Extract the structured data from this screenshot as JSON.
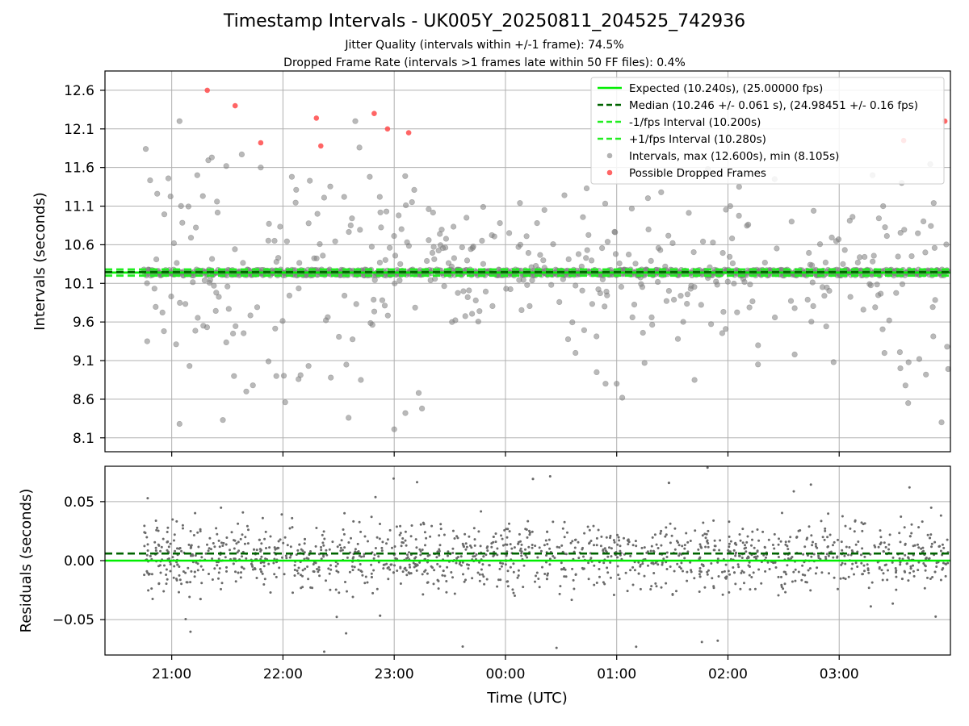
{
  "figure": {
    "title": "Timestamp Intervals - UK005Y_20250811_204525_742936",
    "subtitle_jitter": "Jitter Quality (intervals within +/-1 frame): 74.5%",
    "subtitle_dropped": "Dropped Frame Rate (intervals >1 frames late within 50 FF files): 0.4%"
  },
  "colors": {
    "expected": "#00ee00",
    "median": "#006400",
    "interval_band": "#22ee22",
    "intervals": "#808080",
    "dropped": "#ff4a4a",
    "grid": "#b0b0b0",
    "residuals": "#6a6a6a"
  },
  "chart_data": [
    {
      "type": "scatter",
      "ylabel": "Intervals (seconds)",
      "xlabel": "",
      "x_unit": "hours since 00:00 UTC",
      "xlim": [
        -3.6,
        4.0
      ],
      "ylim": [
        7.92,
        12.85
      ],
      "x_ticks": [
        -3,
        -2,
        -1,
        0,
        1,
        2,
        3
      ],
      "x_tick_labels": [
        "21:00",
        "22:00",
        "23:00",
        "00:00",
        "01:00",
        "02:00",
        "03:00"
      ],
      "y_ticks": [
        8.1,
        8.6,
        9.1,
        9.6,
        10.1,
        10.6,
        11.1,
        11.6,
        12.1,
        12.6
      ],
      "y_tick_labels": [
        "8.1",
        "8.6",
        "9.1",
        "9.6",
        "10.1",
        "10.6",
        "11.1",
        "11.6",
        "12.1",
        "12.6"
      ],
      "grid": true,
      "legend_position": "top-right",
      "lines": [
        {
          "name": "Expected (10.240s), (25.00000 fps)",
          "y": 10.24,
          "style": "solid",
          "color_key": "expected"
        },
        {
          "name": "Median (10.246 +/- 0.061 s), (24.98451 +/- 0.16 fps)",
          "y": 10.246,
          "style": "dashed",
          "color_key": "median"
        },
        {
          "name": "-1/fps Interval (10.200s)",
          "y": 10.2,
          "style": "dashed",
          "color_key": "interval_band"
        },
        {
          "name": "+1/fps Interval (10.280s)",
          "y": 10.28,
          "style": "dashed",
          "color_key": "interval_band"
        }
      ],
      "series": [
        {
          "name": "Intervals, max (12.600s), min (8.105s)",
          "kind": "scatter",
          "color_key": "intervals",
          "stats": {
            "max": 12.6,
            "min": 8.105,
            "count": 1300,
            "core_fraction": 0.745,
            "x_start": -3.25,
            "x_end": 3.98
          },
          "points": [
            [
              -3.22,
              9.35
            ],
            [
              -3.13,
              11.26
            ],
            [
              -3.07,
              9.48
            ],
            [
              -3.03,
              11.46
            ],
            [
              -2.98,
              10.62
            ],
            [
              -2.93,
              12.2
            ],
            [
              -2.93,
              8.28
            ],
            [
              -2.84,
              9.03
            ],
            [
              -2.77,
              11.5
            ],
            [
              -2.72,
              11.23
            ],
            [
              -2.64,
              11.73
            ],
            [
              -2.6,
              9.98
            ],
            [
              -2.54,
              8.33
            ],
            [
              -2.51,
              11.62
            ],
            [
              -2.44,
              8.9
            ],
            [
              -2.37,
              11.77
            ],
            [
              -2.33,
              8.7
            ],
            [
              -2.27,
              8.78
            ],
            [
              -2.2,
              11.6
            ],
            [
              -2.13,
              9.09
            ],
            [
              -2.06,
              8.9
            ],
            [
              -1.98,
              8.56
            ],
            [
              -1.92,
              11.48
            ],
            [
              -1.86,
              8.86
            ],
            [
              -1.77,
              9.03
            ],
            [
              -1.69,
              11.0
            ],
            [
              -1.63,
              11.21
            ],
            [
              -1.57,
              8.88
            ],
            [
              -1.45,
              11.22
            ],
            [
              -1.41,
              8.36
            ],
            [
              -1.35,
              12.2
            ],
            [
              -1.3,
              8.85
            ],
            [
              -1.22,
              11.48
            ],
            [
              -1.13,
              11.22
            ],
            [
              -1.07,
              11.03
            ],
            [
              -1.0,
              8.21
            ],
            [
              -0.96,
              10.98
            ],
            [
              -0.9,
              8.42
            ],
            [
              -0.82,
              11.31
            ],
            [
              -0.78,
              8.68
            ],
            [
              -0.75,
              8.48
            ],
            [
              -0.69,
              10.66
            ],
            [
              -0.59,
              10.74
            ],
            [
              -0.48,
              9.6
            ],
            [
              -0.35,
              10.95
            ],
            [
              -0.2,
              11.09
            ],
            [
              -0.05,
              10.88
            ],
            [
              0.13,
              11.14
            ],
            [
              0.35,
              11.05
            ],
            [
              0.53,
              11.24
            ],
            [
              0.63,
              9.2
            ],
            [
              0.73,
              11.33
            ],
            [
              0.82,
              8.95
            ],
            [
              0.9,
              8.8
            ],
            [
              1.0,
              8.8
            ],
            [
              1.05,
              8.62
            ],
            [
              1.25,
              9.07
            ],
            [
              1.4,
              11.28
            ],
            [
              1.55,
              9.38
            ],
            [
              1.7,
              8.85
            ],
            [
              1.82,
              11.58
            ],
            [
              1.98,
              9.51
            ],
            [
              2.1,
              11.35
            ],
            [
              2.27,
              9.05
            ],
            [
              2.42,
              11.45
            ],
            [
              2.6,
              9.18
            ],
            [
              2.77,
              11.04
            ],
            [
              2.95,
              9.08
            ],
            [
              3.12,
              10.96
            ],
            [
              3.3,
              11.5
            ],
            [
              3.45,
              9.62
            ],
            [
              3.55,
              9.0
            ],
            [
              3.62,
              8.55
            ],
            [
              3.72,
              9.12
            ],
            [
              3.78,
              8.92
            ],
            [
              3.85,
              11.14
            ],
            [
              3.92,
              8.3
            ],
            [
              3.97,
              9.28
            ]
          ]
        },
        {
          "name": "Possible Dropped Frames",
          "kind": "scatter",
          "color_key": "dropped",
          "points": [
            [
              -2.68,
              12.6
            ],
            [
              -2.43,
              12.4
            ],
            [
              -2.2,
              11.92
            ],
            [
              -1.7,
              12.24
            ],
            [
              -1.66,
              11.88
            ],
            [
              -1.18,
              12.3
            ],
            [
              -1.06,
              12.1
            ],
            [
              -0.87,
              12.05
            ],
            [
              3.58,
              11.95
            ],
            [
              3.95,
              12.2
            ]
          ]
        }
      ]
    },
    {
      "type": "scatter",
      "ylabel": "Residuals (seconds)",
      "xlabel": "Time (UTC)",
      "xlim": [
        -3.6,
        4.0
      ],
      "ylim": [
        -0.08,
        0.08
      ],
      "x_ticks": [
        -3,
        -2,
        -1,
        0,
        1,
        2,
        3
      ],
      "x_tick_labels": [
        "21:00",
        "22:00",
        "23:00",
        "00:00",
        "01:00",
        "02:00",
        "03:00"
      ],
      "y_ticks": [
        -0.05,
        0.0,
        0.05
      ],
      "y_tick_labels": [
        "−0.05",
        "0.00",
        "0.05"
      ],
      "grid": true,
      "lines": [
        {
          "name": "Expected",
          "y": 0.0,
          "style": "solid",
          "color_key": "expected"
        },
        {
          "name": "Median",
          "y": 0.006,
          "style": "dashed",
          "color_key": "median"
        }
      ],
      "series": [
        {
          "name": "Residuals",
          "kind": "scatter",
          "color_key": "residuals",
          "stats": {
            "count": 1450,
            "x_start": -3.25,
            "x_end": 3.98,
            "min": -0.08,
            "max": 0.08
          }
        }
      ]
    }
  ]
}
